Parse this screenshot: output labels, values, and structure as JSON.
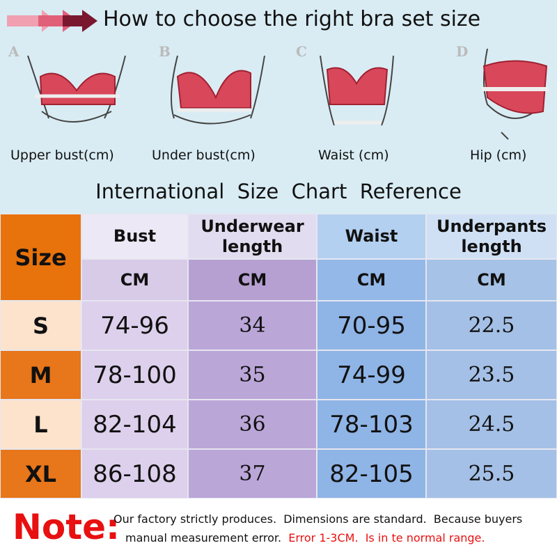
{
  "header": {
    "title": "How to choose the right bra set size"
  },
  "illustrations": [
    {
      "letter": "A",
      "caption": "Upper bust(cm)"
    },
    {
      "letter": "B",
      "caption": "Under bust(cm)"
    },
    {
      "letter": "C",
      "caption": "Waist (cm)"
    },
    {
      "letter": "D",
      "caption": "Hip (cm)"
    }
  ],
  "subtitle": "International  Size  Chart  Reference",
  "table": {
    "header": [
      "Size",
      "Bust",
      "Underwear length",
      "Waist",
      "Underpants length"
    ],
    "units": [
      "CM",
      "CM",
      "CM",
      "CM"
    ],
    "rows": [
      [
        "S",
        "74-96",
        "34",
        "70-95",
        "22.5"
      ],
      [
        "M",
        "78-100",
        "35",
        "74-99",
        "23.5"
      ],
      [
        "L",
        "82-104",
        "36",
        "78-103",
        "24.5"
      ],
      [
        "XL",
        "86-108",
        "37",
        "82-105",
        "25.5"
      ]
    ]
  },
  "note": {
    "label": "Note:",
    "line1": "Our factory strictly produces.  Dimensions are standard.  Because buyers",
    "line2": "manual measurement error.",
    "highlight": "Error 1-3CM.  Is in te normal range."
  }
}
